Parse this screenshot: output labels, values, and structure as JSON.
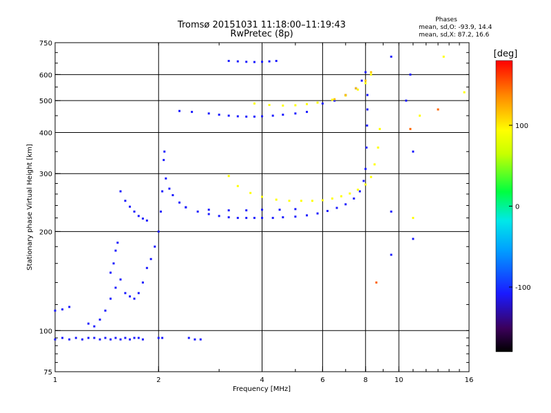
{
  "header": {
    "title": "Tromsø 20151031 11:18:00–11:19:43",
    "subtitle": "RwPretec (8p)"
  },
  "phase_box": {
    "title": "Phases",
    "line_o": "mean, sd,O: -93.9, 14.4",
    "line_x": "mean, sd,X:  87.2, 16.6"
  },
  "colorbar": {
    "unit": "[deg]",
    "ticks": [
      {
        "value": 100,
        "label": "100"
      },
      {
        "value": 0,
        "label": "0"
      },
      {
        "value": -100,
        "label": "-100"
      }
    ],
    "range": [
      -180,
      180
    ]
  },
  "chart_data": {
    "type": "scatter",
    "title": "Tromsø 20151031 11:18:00–11:19:43",
    "subtitle": "RwPretec (8p)",
    "xlabel": "Frequency [MHz]",
    "ylabel": "Stationary phase Virtual Height [km]",
    "x_scale": "log",
    "y_scale": "log",
    "xlim": [
      1,
      16
    ],
    "ylim": [
      75,
      750
    ],
    "x_ticks": [
      {
        "value": 1,
        "label": "1"
      },
      {
        "value": 2,
        "label": "2"
      },
      {
        "value": 4,
        "label": "4"
      },
      {
        "value": 6,
        "label": "6"
      },
      {
        "value": 8,
        "label": "8"
      },
      {
        "value": 10,
        "label": "10"
      },
      {
        "value": 16,
        "label": "16"
      }
    ],
    "y_ticks": [
      {
        "value": 75,
        "label": "75"
      },
      {
        "value": 100,
        "label": "100"
      },
      {
        "value": 200,
        "label": "200"
      },
      {
        "value": 300,
        "label": "300"
      },
      {
        "value": 400,
        "label": "400"
      },
      {
        "value": 500,
        "label": "500"
      },
      {
        "value": 600,
        "label": "600"
      },
      {
        "value": 750,
        "label": "750"
      }
    ],
    "grid_x": [
      2,
      4,
      6,
      8,
      10
    ],
    "grid_y": [
      100,
      200,
      300,
      400,
      500,
      600
    ],
    "grid": true,
    "color_scale": "phase (deg), rainbow colormap",
    "series": [
      {
        "phase": -110,
        "points": [
          [
            1.0,
            94
          ],
          [
            1.05,
            95
          ],
          [
            1.1,
            94
          ],
          [
            1.15,
            95
          ],
          [
            1.2,
            94
          ],
          [
            1.25,
            95
          ],
          [
            1.3,
            95
          ],
          [
            1.35,
            94
          ],
          [
            1.4,
            95
          ],
          [
            1.45,
            94
          ],
          [
            1.5,
            95
          ],
          [
            1.55,
            94
          ],
          [
            1.6,
            95
          ],
          [
            1.65,
            94
          ],
          [
            1.7,
            95
          ],
          [
            1.75,
            95
          ],
          [
            1.8,
            94
          ]
        ]
      },
      {
        "phase": -110,
        "points": [
          [
            2.0,
            95
          ],
          [
            2.05,
            95
          ],
          [
            2.45,
            95
          ],
          [
            2.55,
            94
          ],
          [
            2.65,
            94
          ]
        ]
      },
      {
        "phase": -110,
        "points": [
          [
            1.0,
            115
          ],
          [
            1.05,
            116
          ],
          [
            1.1,
            118
          ],
          [
            1.25,
            105
          ],
          [
            1.3,
            103
          ],
          [
            1.35,
            108
          ],
          [
            1.4,
            115
          ],
          [
            1.45,
            125
          ],
          [
            1.5,
            135
          ],
          [
            1.55,
            143
          ],
          [
            1.6,
            130
          ],
          [
            1.65,
            127
          ],
          [
            1.7,
            125
          ],
          [
            1.75,
            130
          ],
          [
            1.8,
            140
          ],
          [
            1.85,
            155
          ],
          [
            1.9,
            165
          ],
          [
            1.95,
            180
          ],
          [
            2.0,
            200
          ],
          [
            2.03,
            230
          ],
          [
            2.05,
            265
          ],
          [
            2.07,
            330
          ],
          [
            2.08,
            350
          ]
        ]
      },
      {
        "phase": -110,
        "points": [
          [
            1.45,
            150
          ],
          [
            1.48,
            160
          ],
          [
            1.5,
            175
          ],
          [
            1.52,
            185
          ]
        ]
      },
      {
        "phase": -110,
        "points": [
          [
            1.55,
            265
          ],
          [
            1.6,
            248
          ],
          [
            1.65,
            238
          ],
          [
            1.7,
            230
          ],
          [
            1.75,
            223
          ],
          [
            1.8,
            219
          ],
          [
            1.85,
            216
          ]
        ]
      },
      {
        "phase": -110,
        "points": [
          [
            2.1,
            290
          ],
          [
            2.15,
            270
          ],
          [
            2.2,
            258
          ],
          [
            2.3,
            245
          ],
          [
            2.4,
            237
          ],
          [
            2.6,
            230
          ],
          [
            2.8,
            226
          ],
          [
            3.0,
            223
          ],
          [
            3.2,
            221
          ],
          [
            3.4,
            220
          ],
          [
            3.6,
            220
          ],
          [
            3.8,
            220
          ],
          [
            4.0,
            220
          ],
          [
            4.3,
            220
          ],
          [
            4.6,
            221
          ],
          [
            5.0,
            222
          ],
          [
            5.4,
            224
          ],
          [
            5.8,
            227
          ],
          [
            6.2,
            231
          ],
          [
            6.6,
            236
          ],
          [
            7.0,
            242
          ],
          [
            7.4,
            252
          ],
          [
            7.7,
            265
          ],
          [
            7.9,
            285
          ],
          [
            8.0,
            310
          ],
          [
            8.05,
            360
          ],
          [
            8.08,
            420
          ],
          [
            8.1,
            470
          ],
          [
            8.1,
            520
          ]
        ]
      },
      {
        "phase": -110,
        "points": [
          [
            2.4,
            237
          ],
          [
            2.8,
            233
          ],
          [
            3.2,
            232
          ],
          [
            3.6,
            232
          ],
          [
            4.0,
            233
          ],
          [
            4.5,
            233
          ],
          [
            5.0,
            234
          ]
        ]
      },
      {
        "phase": -110,
        "points": [
          [
            2.3,
            465
          ],
          [
            2.5,
            462
          ],
          [
            2.8,
            457
          ],
          [
            3.0,
            453
          ],
          [
            3.2,
            450
          ],
          [
            3.4,
            448
          ],
          [
            3.6,
            447
          ],
          [
            3.8,
            447
          ],
          [
            4.0,
            448
          ],
          [
            4.3,
            450
          ],
          [
            4.6,
            453
          ],
          [
            5.0,
            457
          ],
          [
            5.4,
            462
          ]
        ]
      },
      {
        "phase": -110,
        "points": [
          [
            3.2,
            660
          ],
          [
            3.4,
            658
          ],
          [
            3.6,
            656
          ],
          [
            3.8,
            655
          ],
          [
            4.0,
            656
          ],
          [
            4.2,
            658
          ],
          [
            4.4,
            660
          ]
        ]
      },
      {
        "phase": 100,
        "points": [
          [
            3.2,
            295
          ],
          [
            3.4,
            275
          ],
          [
            3.7,
            262
          ],
          [
            4.0,
            255
          ],
          [
            4.4,
            250
          ],
          [
            4.8,
            248
          ],
          [
            5.2,
            248
          ],
          [
            5.6,
            248
          ],
          [
            6.0,
            249
          ],
          [
            6.4,
            252
          ],
          [
            6.8,
            256
          ],
          [
            7.2,
            261
          ],
          [
            7.6,
            268
          ],
          [
            8.0,
            278
          ],
          [
            8.3,
            293
          ],
          [
            8.5,
            320
          ],
          [
            8.7,
            360
          ],
          [
            8.8,
            410
          ]
        ]
      },
      {
        "phase": 100,
        "points": [
          [
            3.8,
            490
          ],
          [
            4.2,
            485
          ],
          [
            4.6,
            483
          ],
          [
            5.0,
            484
          ],
          [
            5.4,
            488
          ],
          [
            5.8,
            493
          ],
          [
            6.4,
            503
          ],
          [
            7.0,
            518
          ],
          [
            7.6,
            540
          ],
          [
            8.0,
            565
          ],
          [
            8.3,
            600
          ]
        ]
      },
      {
        "phase": -110,
        "points": [
          [
            6.0,
            490
          ],
          [
            6.5,
            500
          ],
          [
            7.0,
            520
          ],
          [
            7.5,
            545
          ],
          [
            7.8,
            575
          ],
          [
            8.0,
            610
          ]
        ]
      },
      {
        "phase": 120,
        "points": [
          [
            6.5,
            505
          ],
          [
            7.0,
            520
          ],
          [
            7.5,
            545
          ],
          [
            8.0,
            575
          ],
          [
            8.3,
            610
          ]
        ]
      },
      {
        "phase": 100,
        "points": [
          [
            13.5,
            680
          ],
          [
            15.5,
            530
          ],
          [
            11.5,
            450
          ],
          [
            11.0,
            220
          ]
        ]
      },
      {
        "phase": -110,
        "points": [
          [
            9.5,
            680
          ],
          [
            10.8,
            600
          ],
          [
            10.5,
            500
          ],
          [
            11.0,
            350
          ],
          [
            9.5,
            230
          ],
          [
            11.0,
            190
          ],
          [
            9.5,
            170
          ]
        ]
      },
      {
        "phase": 150,
        "points": [
          [
            8.6,
            140
          ],
          [
            13.0,
            470
          ],
          [
            10.8,
            410
          ]
        ]
      }
    ]
  }
}
